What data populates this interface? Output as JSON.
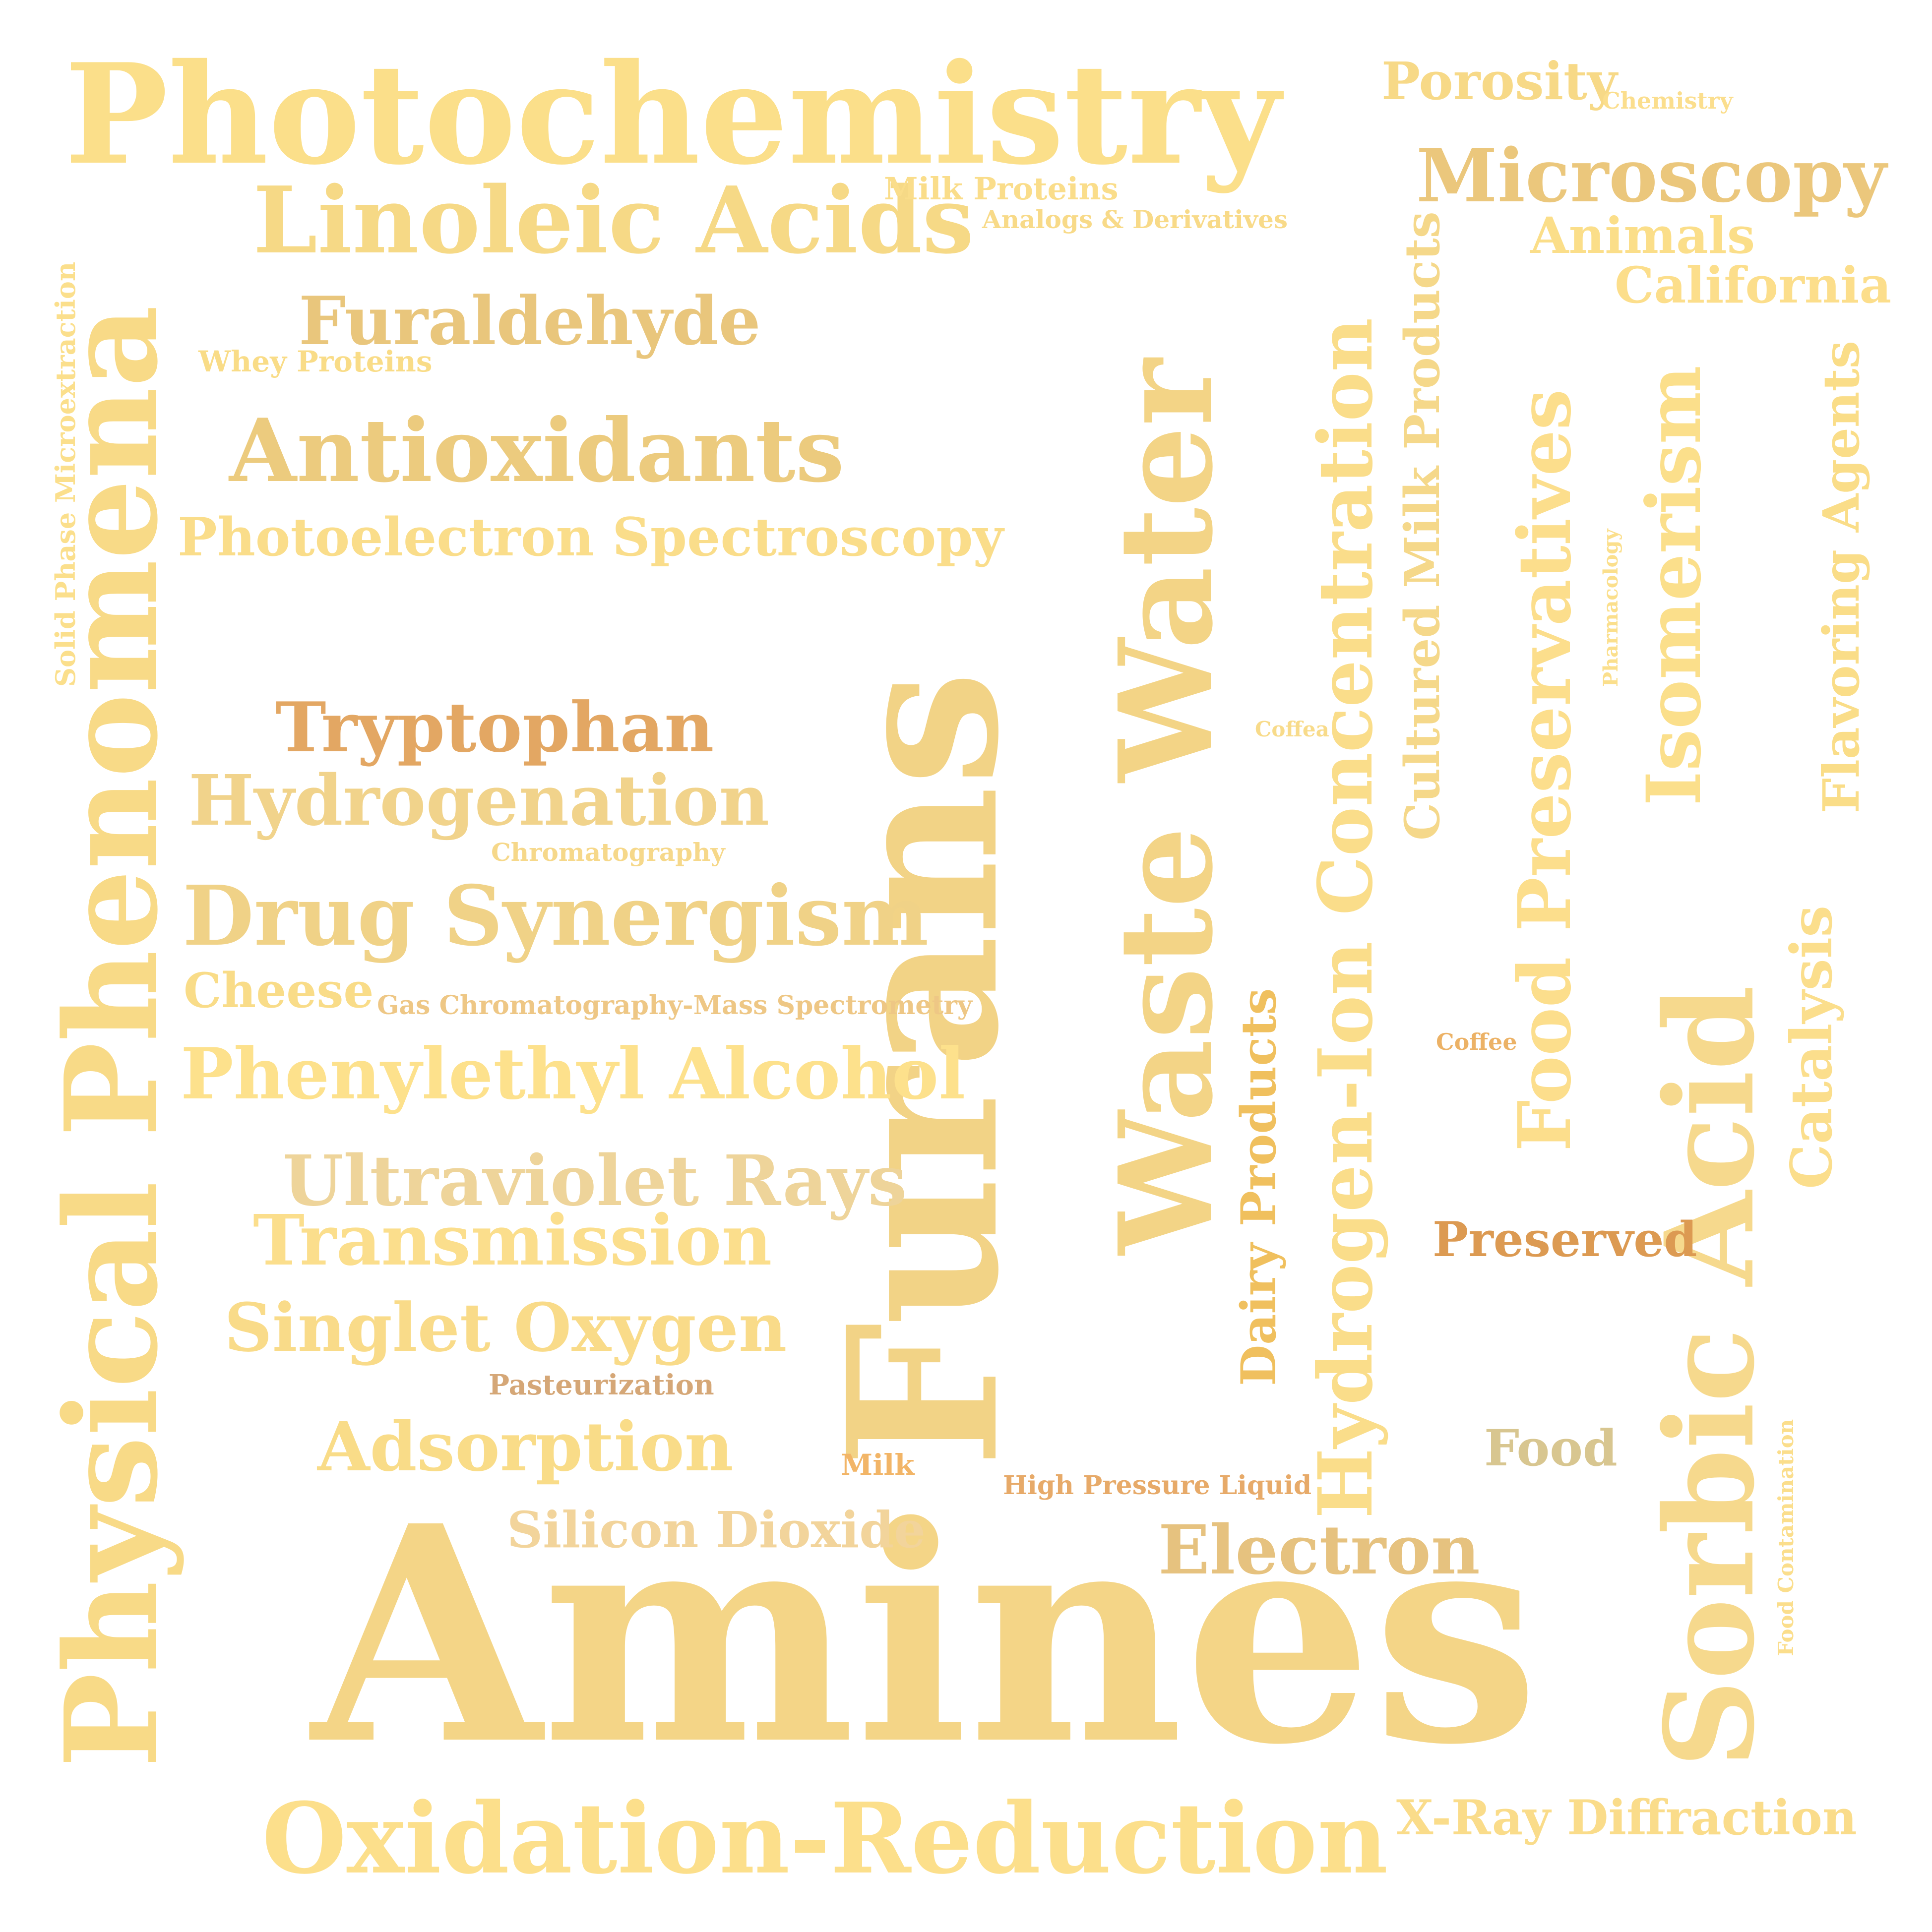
{
  "words": [
    {
      "text": "Amines",
      "color": "#f4d587"
    },
    {
      "text": "Furans",
      "color": "#f2d386"
    },
    {
      "text": "Photochemistry",
      "color": "#fbdf8a"
    },
    {
      "text": "Physical Phenomena",
      "color": "#f8da87"
    },
    {
      "text": "Waste Water",
      "color": "#f3d486"
    },
    {
      "text": "Sorbic Acid",
      "color": "#f6d98d"
    },
    {
      "text": "Oxidation-Reduction",
      "color": "#fcdf8b"
    },
    {
      "text": "Linoleic Acids",
      "color": "#f6d986"
    },
    {
      "text": "Microscopy",
      "color": "#ebc77c"
    },
    {
      "text": "Antioxidants",
      "color": "#eccb7e"
    },
    {
      "text": "Hydrogen-Ion Concentration",
      "color": "#fadd8a"
    },
    {
      "text": "Food Preservatives",
      "color": "#fcde8c"
    },
    {
      "text": "Drug Synergism",
      "color": "#f0d287"
    },
    {
      "text": "Isomerism",
      "color": "#fbdf8b"
    },
    {
      "text": "Furaldehyde",
      "color": "#e9c67c"
    },
    {
      "text": "Tryptophan",
      "color": "#e3a763"
    },
    {
      "text": "Hydrogenation",
      "color": "#f1d38b"
    },
    {
      "text": "Phenylethyl Alcohol",
      "color": "#fde18c"
    },
    {
      "text": "Ultraviolet Rays",
      "color": "#eed49a"
    },
    {
      "text": "Transmission",
      "color": "#fbde8c"
    },
    {
      "text": "Singlet Oxygen",
      "color": "#f9db89"
    },
    {
      "text": "Adsorption",
      "color": "#f9dc88"
    },
    {
      "text": "Electron",
      "color": "#e6c27f"
    },
    {
      "text": "Photoelectron Spectroscopy",
      "color": "#fadd8a"
    },
    {
      "text": "Silicon Dioxide",
      "color": "#f2d49b"
    },
    {
      "text": "X-Ray Diffraction",
      "color": "#fadc8a"
    },
    {
      "text": "Cultured Milk Products",
      "color": "#f5d88a"
    },
    {
      "text": "Catalysis",
      "color": "#fbde8c"
    },
    {
      "text": "Flavoring Agents",
      "color": "#fadd88"
    },
    {
      "text": "California",
      "color": "#fcde8b"
    },
    {
      "text": "Porosity",
      "color": "#f7d987"
    },
    {
      "text": "Animals",
      "color": "#fbde89"
    },
    {
      "text": "Cheese",
      "color": "#f9dc88"
    },
    {
      "text": "Dairy Products",
      "color": "#f0c05e"
    },
    {
      "text": "Preserved",
      "color": "#dc9a52"
    },
    {
      "text": "Food",
      "color": "#d8c690"
    },
    {
      "text": "Milk Proteins",
      "color": "#fadd8a"
    },
    {
      "text": "Analogs & Derivatives",
      "color": "#f8da88"
    },
    {
      "text": "Whey Proteins",
      "color": "#f9dc87"
    },
    {
      "text": "Gas Chromatography-Mass Spectrometry",
      "color": "#eec785"
    },
    {
      "text": "Solid Phase Microextraction",
      "color": "#fbdf8c"
    },
    {
      "text": "Chromatography",
      "color": "#f6d88a"
    },
    {
      "text": "Pasteurization",
      "color": "#d5a777"
    },
    {
      "text": "High Pressure Liquid",
      "color": "#e7aa69"
    },
    {
      "text": "Milk",
      "color": "#f2b567"
    },
    {
      "text": "Coffee",
      "color": "#ecb266"
    },
    {
      "text": "Coffea",
      "color": "#f8db8a"
    },
    {
      "text": "Chemistry",
      "color": "#fbde8d"
    },
    {
      "text": "Pharmacology",
      "color": "#fbdf8c"
    },
    {
      "text": "Food Contamination",
      "color": "#fbde8c"
    }
  ]
}
